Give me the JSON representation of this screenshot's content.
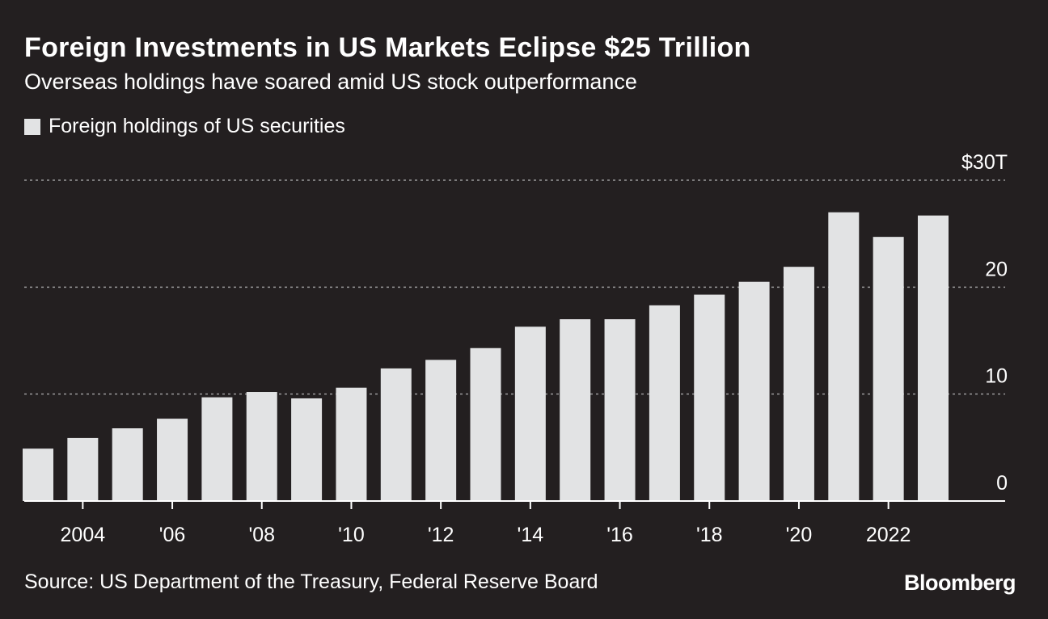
{
  "colors": {
    "background": "#231f20",
    "bar": "#e2e3e4",
    "text": "#ffffff",
    "gridline": "#9a9a9a"
  },
  "title": "Foreign Investments in US Markets Eclipse $25 Trillion",
  "subtitle": "Overseas holdings have soared amid US stock outperformance",
  "source": "Source: US Department of the Treasury, Federal Reserve Board",
  "brand": "Bloomberg",
  "chart_data": {
    "type": "bar",
    "title": "Foreign Investments in US Markets Eclipse $25 Trillion",
    "subtitle": "Overseas holdings have soared amid US stock outperformance",
    "legend": [
      "Foreign holdings of US securities"
    ],
    "legend_position": "top-left",
    "grid": true,
    "categories": [
      2003,
      2004,
      2005,
      2006,
      2007,
      2008,
      2009,
      2010,
      2011,
      2012,
      2013,
      2014,
      2015,
      2016,
      2017,
      2018,
      2019,
      2020,
      2021,
      2022,
      2023
    ],
    "series": [
      {
        "name": "Foreign holdings of US securities",
        "values": [
          4.9,
          5.9,
          6.8,
          7.7,
          9.7,
          10.2,
          9.6,
          10.6,
          12.4,
          13.2,
          14.3,
          16.3,
          17.0,
          17.0,
          18.3,
          19.3,
          20.5,
          21.9,
          27.0,
          24.7,
          26.7
        ]
      }
    ],
    "ylim": [
      0,
      30
    ],
    "y_ticks": [
      "$30T",
      "20",
      "10",
      "0"
    ],
    "y_tick_values": [
      30,
      20,
      10,
      0
    ],
    "x_ticks": [
      "2004",
      "'06",
      "'08",
      "'10",
      "'12",
      "'14",
      "'16",
      "'18",
      "'20",
      "2022"
    ],
    "x_tick_years": [
      2004,
      2006,
      2008,
      2010,
      2012,
      2014,
      2016,
      2018,
      2020,
      2022
    ],
    "xlabel": "",
    "ylabel": ""
  }
}
